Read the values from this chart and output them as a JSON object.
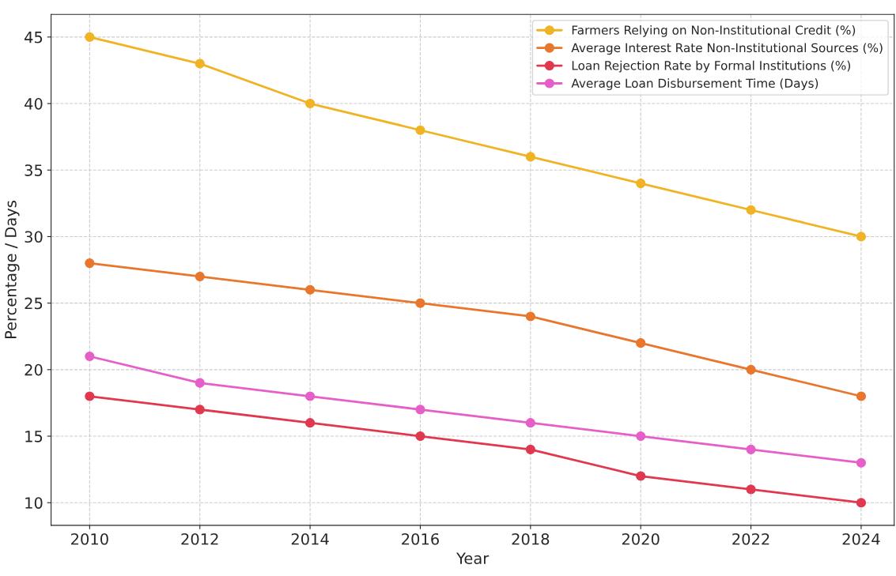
{
  "chart_data": {
    "type": "line",
    "xlabel": "Year",
    "ylabel": "Percentage / Days",
    "x": [
      2010,
      2012,
      2014,
      2016,
      2018,
      2020,
      2022,
      2024
    ],
    "series": [
      {
        "name": "Farmers Relying on Non-Institutional Credit (%)",
        "color": "#f0b323",
        "values": [
          45,
          43,
          40,
          38,
          36,
          34,
          32,
          30
        ]
      },
      {
        "name": "Average Interest Rate Non-Institutional Sources (%)",
        "color": "#e8762d",
        "values": [
          28,
          27,
          26,
          25,
          24,
          22,
          20,
          18
        ]
      },
      {
        "name": "Loan Rejection Rate by Formal Institutions (%)",
        "color": "#e0384f",
        "values": [
          18,
          17,
          16,
          15,
          14,
          12,
          11,
          10
        ]
      },
      {
        "name": "Average Loan Disbursement Time (Days)",
        "color": "#e65fc9",
        "values": [
          21,
          19,
          18,
          17,
          16,
          15,
          14,
          13
        ]
      }
    ],
    "xlim": [
      2009.3,
      2024.6
    ],
    "ylim": [
      8.3,
      46.7
    ],
    "xticks": [
      2010,
      2012,
      2014,
      2016,
      2018,
      2020,
      2022,
      2024
    ],
    "yticks": [
      10,
      15,
      20,
      25,
      30,
      35,
      40,
      45
    ],
    "grid": true,
    "legend": "top right",
    "marker": "circle",
    "line_style": "solid"
  }
}
